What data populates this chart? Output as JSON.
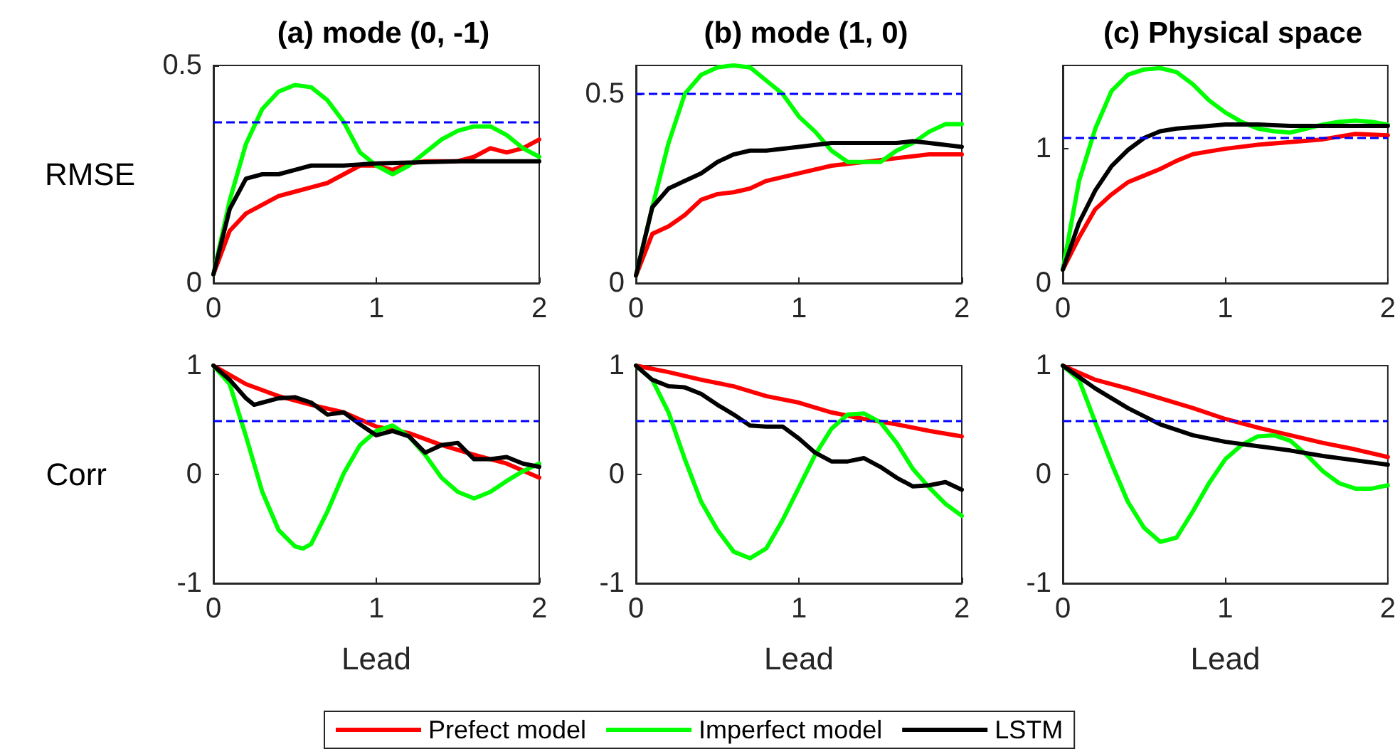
{
  "chart_data": [
    {
      "type": "line",
      "title": "(a) mode (0, -1)",
      "ylabel": "RMSE",
      "xlim": [
        0,
        2
      ],
      "xticks": [
        0,
        1,
        2
      ],
      "ylim": [
        0,
        0.5
      ],
      "yticks": [
        0,
        0.5
      ],
      "grid": false,
      "marker": "none",
      "line_style": "solid",
      "ref_lines": [
        {
          "axis": "y",
          "value": 0.367,
          "color": "#0000ff",
          "line_style": "dashed"
        }
      ],
      "series": [
        {
          "color": "#ff0000",
          "x": [
            0,
            0.1,
            0.2,
            0.3,
            0.4,
            0.5,
            0.6,
            0.7,
            0.8,
            0.9,
            1,
            1.1,
            1.2,
            1.3,
            1.4,
            1.5,
            1.6,
            1.7,
            1.8,
            1.9,
            2
          ],
          "values": [
            0.02,
            0.12,
            0.16,
            0.18,
            0.2,
            0.21,
            0.22,
            0.23,
            0.25,
            0.27,
            0.27,
            0.26,
            0.275,
            0.28,
            0.28,
            0.28,
            0.29,
            0.31,
            0.3,
            0.31,
            0.33
          ]
        },
        {
          "color": "#00ff00",
          "x": [
            0,
            0.1,
            0.2,
            0.3,
            0.4,
            0.5,
            0.6,
            0.7,
            0.8,
            0.9,
            1,
            1.1,
            1.2,
            1.3,
            1.4,
            1.5,
            1.6,
            1.7,
            1.8,
            1.9,
            2
          ],
          "values": [
            0.02,
            0.19,
            0.32,
            0.4,
            0.44,
            0.455,
            0.45,
            0.42,
            0.37,
            0.3,
            0.27,
            0.25,
            0.27,
            0.3,
            0.33,
            0.35,
            0.36,
            0.36,
            0.34,
            0.31,
            0.29
          ]
        },
        {
          "color": "#000000",
          "x": [
            0,
            0.1,
            0.2,
            0.3,
            0.4,
            0.5,
            0.6,
            0.8,
            1,
            1.5,
            2
          ],
          "values": [
            0.02,
            0.17,
            0.24,
            0.25,
            0.25,
            0.26,
            0.27,
            0.27,
            0.275,
            0.28,
            0.28
          ]
        }
      ]
    },
    {
      "type": "line",
      "title": "(b) mode (1, 0)",
      "xlim": [
        0,
        2
      ],
      "xticks": [
        0,
        1,
        2
      ],
      "ylim": [
        0,
        0.575
      ],
      "yticks": [
        0,
        0.5
      ],
      "grid": false,
      "marker": "none",
      "line_style": "solid",
      "ref_lines": [
        {
          "axis": "y",
          "value": 0.5,
          "color": "#0000ff",
          "line_style": "dashed"
        }
      ],
      "series": [
        {
          "color": "#ff0000",
          "x": [
            0,
            0.1,
            0.2,
            0.3,
            0.4,
            0.5,
            0.6,
            0.7,
            0.8,
            1,
            1.2,
            1.4,
            1.6,
            1.8,
            2
          ],
          "values": [
            0.02,
            0.13,
            0.15,
            0.18,
            0.22,
            0.235,
            0.24,
            0.25,
            0.27,
            0.29,
            0.31,
            0.32,
            0.33,
            0.34,
            0.34
          ]
        },
        {
          "color": "#00ff00",
          "x": [
            0,
            0.1,
            0.2,
            0.3,
            0.4,
            0.5,
            0.6,
            0.7,
            0.8,
            0.9,
            1,
            1.1,
            1.2,
            1.3,
            1.4,
            1.5,
            1.6,
            1.7,
            1.8,
            1.9,
            2
          ],
          "values": [
            0.02,
            0.2,
            0.37,
            0.5,
            0.55,
            0.57,
            0.575,
            0.57,
            0.535,
            0.5,
            0.44,
            0.4,
            0.35,
            0.32,
            0.32,
            0.32,
            0.35,
            0.37,
            0.4,
            0.42,
            0.42
          ]
        },
        {
          "color": "#000000",
          "x": [
            0,
            0.1,
            0.2,
            0.3,
            0.4,
            0.5,
            0.6,
            0.7,
            0.8,
            1,
            1.2,
            1.4,
            1.6,
            1.7,
            1.8,
            2
          ],
          "values": [
            0.02,
            0.2,
            0.25,
            0.27,
            0.29,
            0.32,
            0.34,
            0.35,
            0.35,
            0.36,
            0.37,
            0.37,
            0.37,
            0.375,
            0.37,
            0.36
          ]
        }
      ]
    },
    {
      "type": "line",
      "title": "(c) Physical space",
      "xlim": [
        0,
        2
      ],
      "xticks": [
        0,
        1,
        2
      ],
      "ylim": [
        0,
        1.62
      ],
      "yticks": [
        0,
        1
      ],
      "grid": false,
      "marker": "none",
      "line_style": "solid",
      "ref_lines": [
        {
          "axis": "y",
          "value": 1.08,
          "color": "#0000ff",
          "line_style": "dashed"
        }
      ],
      "series": [
        {
          "color": "#ff0000",
          "x": [
            0,
            0.1,
            0.2,
            0.3,
            0.4,
            0.5,
            0.6,
            0.7,
            0.8,
            0.9,
            1,
            1.2,
            1.4,
            1.6,
            1.8,
            2
          ],
          "values": [
            0.1,
            0.34,
            0.55,
            0.66,
            0.75,
            0.8,
            0.85,
            0.91,
            0.96,
            0.98,
            1,
            1.03,
            1.05,
            1.07,
            1.11,
            1.1
          ]
        },
        {
          "color": "#00ff00",
          "x": [
            0,
            0.1,
            0.2,
            0.3,
            0.4,
            0.5,
            0.6,
            0.7,
            0.8,
            0.9,
            1,
            1.1,
            1.2,
            1.3,
            1.4,
            1.5,
            1.6,
            1.7,
            1.8,
            1.9,
            2
          ],
          "values": [
            0.1,
            0.76,
            1.15,
            1.43,
            1.55,
            1.59,
            1.6,
            1.57,
            1.48,
            1.36,
            1.27,
            1.2,
            1.15,
            1.13,
            1.12,
            1.15,
            1.18,
            1.2,
            1.21,
            1.2,
            1.18
          ]
        },
        {
          "color": "#000000",
          "x": [
            0,
            0.1,
            0.2,
            0.3,
            0.4,
            0.5,
            0.6,
            0.7,
            0.8,
            1,
            1.2,
            1.4,
            1.6,
            1.8,
            2
          ],
          "values": [
            0.1,
            0.45,
            0.69,
            0.87,
            0.99,
            1.08,
            1.13,
            1.15,
            1.16,
            1.18,
            1.18,
            1.17,
            1.17,
            1.17,
            1.17
          ]
        }
      ]
    },
    {
      "type": "line",
      "ylabel": "Corr",
      "xlabel": "Lead",
      "xlim": [
        0,
        2
      ],
      "xticks": [
        0,
        1,
        2
      ],
      "ylim": [
        -1,
        1
      ],
      "yticks": [
        -1,
        0,
        1
      ],
      "grid": false,
      "marker": "none",
      "line_style": "solid",
      "ref_lines": [
        {
          "axis": "y",
          "value": 0.5,
          "color": "#0000ff",
          "line_style": "dashed"
        }
      ],
      "series": [
        {
          "color": "#ff0000",
          "x": [
            0,
            0.2,
            0.4,
            0.6,
            0.8,
            1,
            1.2,
            1.4,
            1.6,
            1.8,
            2
          ],
          "values": [
            1,
            0.83,
            0.72,
            0.64,
            0.57,
            0.44,
            0.38,
            0.27,
            0.18,
            0.1,
            -0.03
          ]
        },
        {
          "color": "#00ff00",
          "x": [
            0,
            0.1,
            0.2,
            0.3,
            0.4,
            0.5,
            0.55,
            0.6,
            0.7,
            0.8,
            0.9,
            1,
            1.1,
            1.2,
            1.3,
            1.4,
            1.5,
            1.6,
            1.7,
            1.8,
            1.9,
            2
          ],
          "values": [
            1,
            0.83,
            0.35,
            -0.16,
            -0.51,
            -0.66,
            -0.68,
            -0.64,
            -0.34,
            0.01,
            0.27,
            0.4,
            0.45,
            0.35,
            0.18,
            -0.03,
            -0.16,
            -0.22,
            -0.16,
            -0.06,
            0.03,
            0.1
          ]
        },
        {
          "color": "#000000",
          "x": [
            0,
            0.1,
            0.2,
            0.25,
            0.3,
            0.4,
            0.5,
            0.6,
            0.7,
            0.8,
            0.9,
            1,
            1.1,
            1.2,
            1.3,
            1.4,
            1.5,
            1.6,
            1.7,
            1.8,
            1.9,
            2
          ],
          "values": [
            1,
            0.87,
            0.7,
            0.64,
            0.66,
            0.7,
            0.71,
            0.66,
            0.55,
            0.57,
            0.46,
            0.36,
            0.4,
            0.35,
            0.2,
            0.27,
            0.29,
            0.14,
            0.14,
            0.16,
            0.1,
            0.07
          ]
        }
      ]
    },
    {
      "type": "line",
      "xlabel": "Lead",
      "xlim": [
        0,
        2
      ],
      "xticks": [
        0,
        1,
        2
      ],
      "ylim": [
        -1,
        1
      ],
      "yticks": [
        -1,
        0,
        1
      ],
      "grid": false,
      "marker": "none",
      "line_style": "solid",
      "legend": "bottom",
      "ref_lines": [
        {
          "axis": "y",
          "value": 0.5,
          "color": "#0000ff",
          "line_style": "dashed"
        }
      ],
      "series": [
        {
          "name": "Prefect model",
          "color": "#ff0000",
          "x": [
            0,
            0.2,
            0.4,
            0.6,
            0.8,
            1,
            1.2,
            1.4,
            1.6,
            1.8,
            2
          ],
          "values": [
            1,
            0.94,
            0.87,
            0.81,
            0.72,
            0.66,
            0.57,
            0.51,
            0.46,
            0.4,
            0.35
          ]
        },
        {
          "name": "Imperfect model",
          "color": "#00ff00",
          "x": [
            0,
            0.1,
            0.2,
            0.3,
            0.4,
            0.5,
            0.6,
            0.7,
            0.8,
            0.9,
            1,
            1.1,
            1.2,
            1.3,
            1.4,
            1.5,
            1.6,
            1.7,
            1.8,
            1.9,
            2
          ],
          "values": [
            1,
            0.87,
            0.57,
            0.14,
            -0.25,
            -0.51,
            -0.71,
            -0.77,
            -0.68,
            -0.42,
            -0.12,
            0.18,
            0.42,
            0.55,
            0.56,
            0.48,
            0.29,
            0.05,
            -0.12,
            -0.27,
            -0.38
          ]
        },
        {
          "name": "LSTM",
          "color": "#000000",
          "x": [
            0,
            0.1,
            0.2,
            0.3,
            0.4,
            0.5,
            0.6,
            0.7,
            0.8,
            0.9,
            1,
            1.1,
            1.2,
            1.3,
            1.4,
            1.5,
            1.6,
            1.7,
            1.8,
            1.9,
            2
          ],
          "values": [
            1,
            0.87,
            0.81,
            0.8,
            0.74,
            0.64,
            0.55,
            0.45,
            0.44,
            0.44,
            0.33,
            0.2,
            0.12,
            0.12,
            0.15,
            0.07,
            -0.03,
            -0.11,
            -0.1,
            -0.07,
            -0.14
          ]
        }
      ]
    },
    {
      "type": "line",
      "xlabel": "Lead",
      "xlim": [
        0,
        2
      ],
      "xticks": [
        0,
        1,
        2
      ],
      "ylim": [
        -1,
        1
      ],
      "yticks": [
        -1,
        0,
        1
      ],
      "grid": false,
      "marker": "none",
      "line_style": "solid",
      "ref_lines": [
        {
          "axis": "y",
          "value": 0.5,
          "color": "#0000ff",
          "line_style": "dashed"
        }
      ],
      "series": [
        {
          "color": "#ff0000",
          "x": [
            0,
            0.2,
            0.4,
            0.6,
            0.8,
            1,
            1.2,
            1.4,
            1.6,
            1.8,
            2
          ],
          "values": [
            1,
            0.87,
            0.79,
            0.7,
            0.61,
            0.51,
            0.43,
            0.36,
            0.29,
            0.23,
            0.16
          ]
        },
        {
          "color": "#00ff00",
          "x": [
            0,
            0.1,
            0.2,
            0.3,
            0.4,
            0.5,
            0.6,
            0.7,
            0.8,
            0.9,
            1,
            1.1,
            1.2,
            1.3,
            1.4,
            1.5,
            1.6,
            1.7,
            1.8,
            1.9,
            2
          ],
          "values": [
            1,
            0.87,
            0.48,
            0.1,
            -0.25,
            -0.49,
            -0.62,
            -0.58,
            -0.34,
            -0.08,
            0.14,
            0.27,
            0.35,
            0.36,
            0.31,
            0.18,
            0.03,
            -0.08,
            -0.13,
            -0.13,
            -0.1
          ]
        },
        {
          "color": "#000000",
          "x": [
            0,
            0.2,
            0.4,
            0.6,
            0.8,
            1,
            1.2,
            1.4,
            1.6,
            1.8,
            2
          ],
          "values": [
            1,
            0.79,
            0.61,
            0.46,
            0.36,
            0.3,
            0.26,
            0.22,
            0.17,
            0.13,
            0.09
          ]
        }
      ]
    }
  ]
}
